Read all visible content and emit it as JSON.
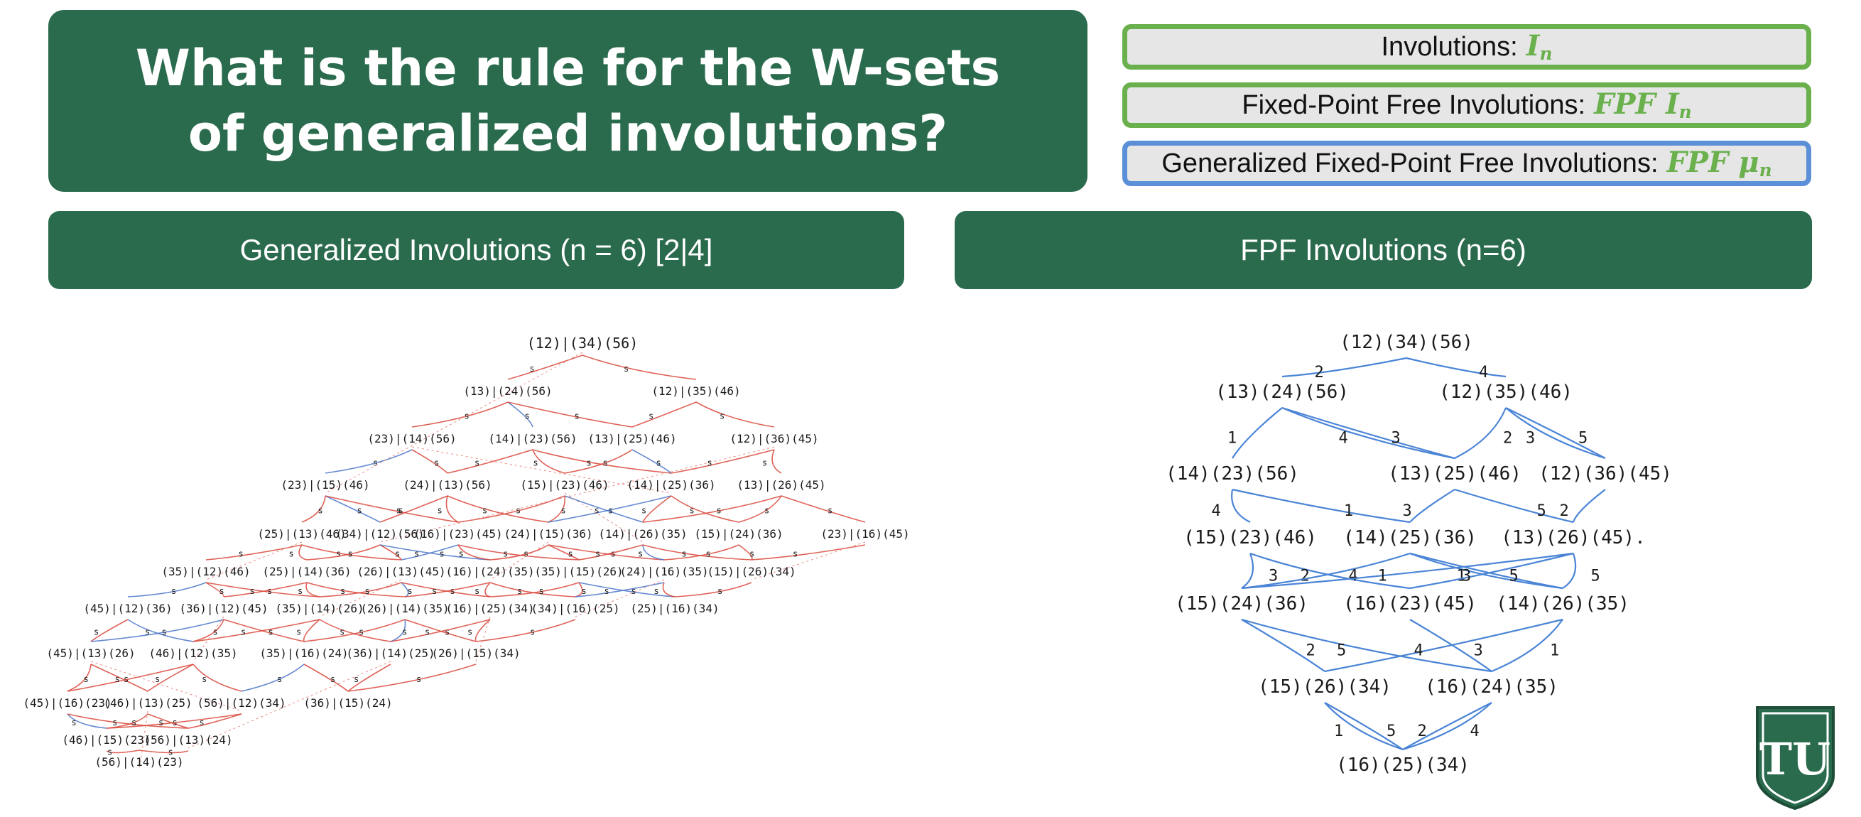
{
  "title": "What is the rule for the W-sets of generalized involutions?",
  "legend": [
    {
      "label": "Involutions:",
      "symbol": "I",
      "sub": "n",
      "color": "#6ab04c"
    },
    {
      "label": "Fixed-Point Free Involutions:",
      "symbol": "FPF I",
      "sub": "n",
      "color": "#6ab04c"
    },
    {
      "label": "Generalized Fixed-Point Free Involutions:",
      "symbol": "FPF μ",
      "sub": "n",
      "color": "#5b8fd8"
    }
  ],
  "left_header": "Generalized Involutions (n = 6) [2|4]",
  "right_header": "FPF Involutions (n=6)",
  "left_diagram": {
    "nodes": [
      "(12)|(34)(56)",
      "(13)|(24)(56)",
      "(12)|(35)(46)",
      "(23)|(14)(56)",
      "(14)|(23)(56)",
      "(13)|(25)(46)",
      "(12)|(36)(45)",
      "(23)|(15)(46)",
      "(24)|(13)(56)",
      "(15)|(23)(46)",
      "(14)|(25)(36)",
      "(13)|(26)(45)",
      "(25)|(13)(46)",
      "(34)|(12)(56)",
      "(16)|(23)(45)",
      "(24)|(15)(36)",
      "(14)|(26)(35)",
      "(15)|(24)(36)",
      "(23)|(16)(45)",
      "(35)|(12)(46)",
      "(25)|(14)(36)",
      "(26)|(13)(45)",
      "(16)|(24)(35)",
      "(35)|(15)(26)",
      "(24)|(16)(35)",
      "(15)|(26)(34)",
      "(45)|(12)(36)",
      "(36)|(12)(45)",
      "(35)|(14)(26)",
      "(26)|(14)(35)",
      "(16)|(25)(34)",
      "(34)|(16)(25)",
      "(25)|(16)(34)",
      "(45)|(13)(26)",
      "(46)|(12)(35)",
      "(35)|(16)(24)",
      "(36)|(14)(25)",
      "(26)|(15)(34)",
      "(45)|(16)(23)",
      "(46)|(13)(25)",
      "(56)|(12)(34)",
      "(36)|(15)(24)",
      "(46)|(15)(23)",
      "(56)|(13)(24)",
      "(56)|(14)(23)"
    ]
  },
  "right_diagram": {
    "nodes": [
      "(12)(34)(56)",
      "(13)(24)(56)",
      "(12)(35)(46)",
      "(14)(23)(56)",
      "(13)(25)(46)",
      "(12)(36)(45)",
      "(15)(23)(46)",
      "(14)(25)(36)",
      "(13)(26)(45).",
      "(15)(24)(36)",
      "(16)(23)(45)",
      "(14)(26)(35)",
      "(15)(26)(34)",
      "(16)(24)(35)",
      "(16)(25)(34)"
    ],
    "edge_labels": [
      "2",
      "4",
      "1",
      "3",
      "4",
      "2",
      "3",
      "5",
      "4",
      "1",
      "3",
      "5",
      "2",
      "3",
      "2",
      "4",
      "1",
      "5",
      "3",
      "5",
      "1",
      "2",
      "5",
      "3",
      "4",
      "1",
      "1",
      "5",
      "2",
      "4"
    ]
  },
  "logo": {
    "glyph": "TU",
    "color": "#2a6a4d"
  }
}
